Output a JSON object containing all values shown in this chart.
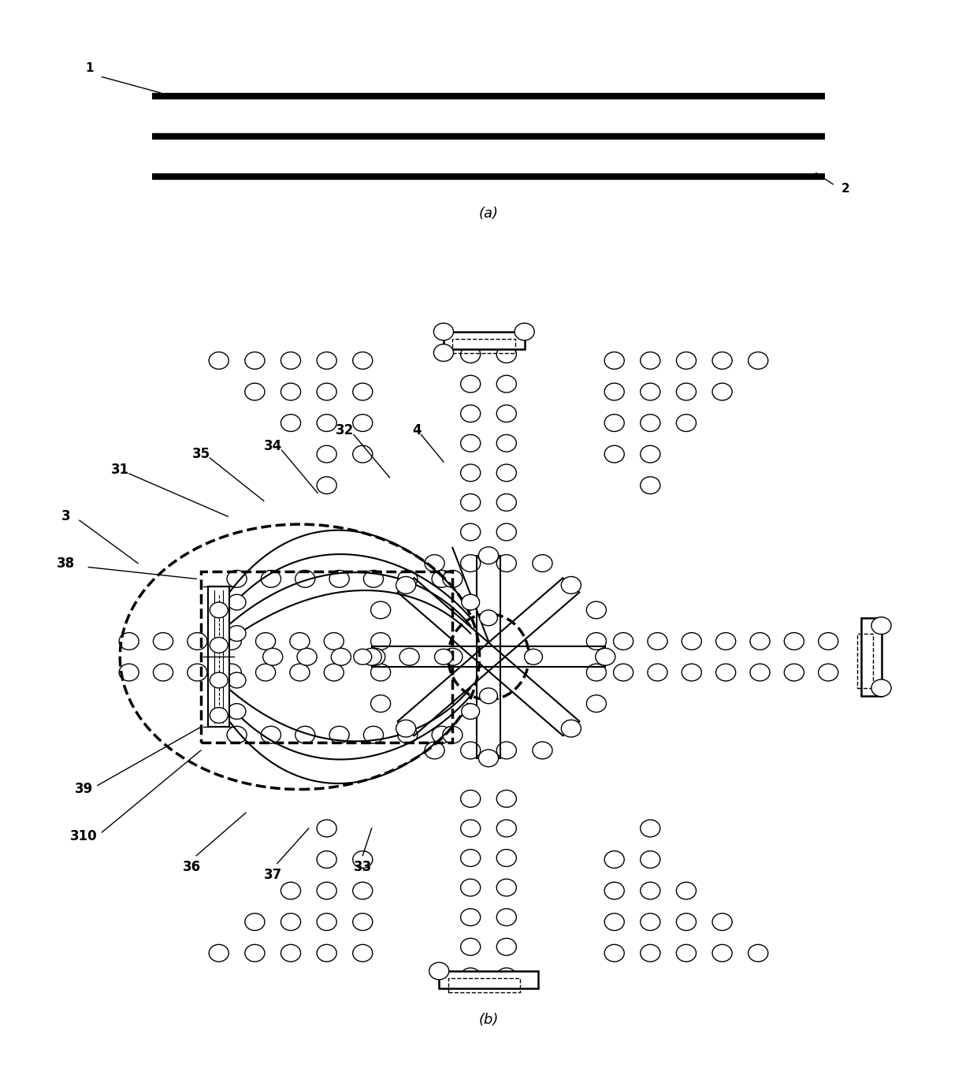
{
  "bg_color": "#ffffff",
  "line_color": "#000000",
  "fig_width": 12.4,
  "fig_height": 13.55
}
